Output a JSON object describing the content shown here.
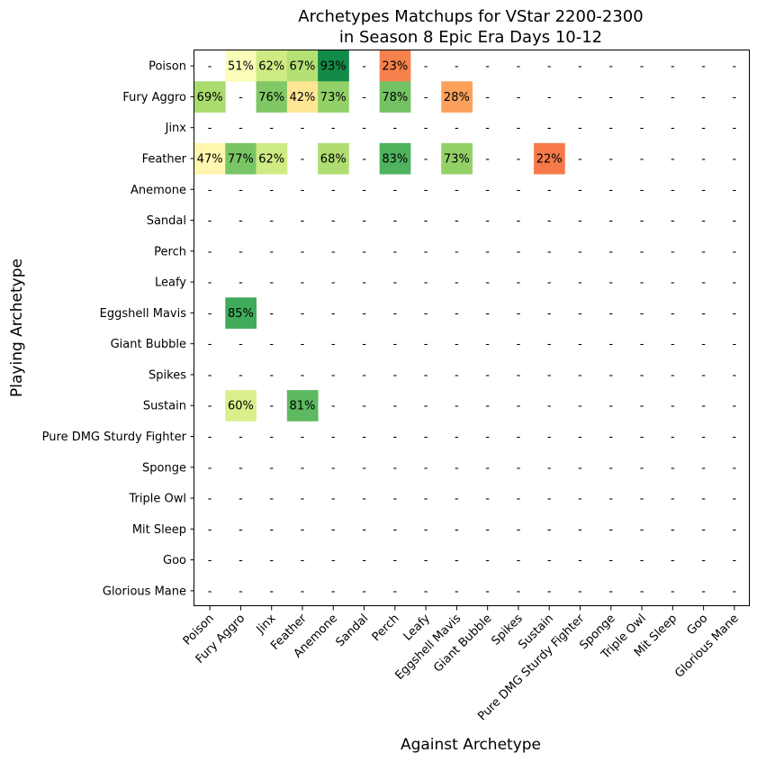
{
  "chart_data": {
    "type": "heatmap",
    "title_lines": [
      "Archetypes Matchups for VStar 2200-2300",
      "in Season 8 Epic Era Days 10-12"
    ],
    "xlabel": "Against Archetype",
    "ylabel": "Playing Archetype",
    "rows": [
      "Poison",
      "Fury Aggro",
      "Jinx",
      "Feather",
      "Anemone",
      "Sandal",
      "Perch",
      "Leafy",
      "Eggshell Mavis",
      "Giant Bubble",
      "Spikes",
      "Sustain",
      "Pure DMG Sturdy Fighter",
      "Sponge",
      "Triple Owl",
      "Mit Sleep",
      "Goo",
      "Glorious Mane"
    ],
    "columns": [
      "Poison",
      "Fury Aggro",
      "Jinx",
      "Feather",
      "Anemone",
      "Sandal",
      "Perch",
      "Leafy",
      "Eggshell Mavis",
      "Giant Bubble",
      "Spikes",
      "Sustain",
      "Pure DMG Sturdy Fighter",
      "Sponge",
      "Triple Owl",
      "Mit Sleep",
      "Goo",
      "Glorious Mane"
    ],
    "values": [
      [
        null,
        51,
        62,
        67,
        93,
        null,
        23,
        null,
        null,
        null,
        null,
        null,
        null,
        null,
        null,
        null,
        null,
        null
      ],
      [
        69,
        null,
        76,
        42,
        73,
        null,
        78,
        null,
        28,
        null,
        null,
        null,
        null,
        null,
        null,
        null,
        null,
        null
      ],
      [
        null,
        null,
        null,
        null,
        null,
        null,
        null,
        null,
        null,
        null,
        null,
        null,
        null,
        null,
        null,
        null,
        null,
        null
      ],
      [
        47,
        77,
        62,
        null,
        68,
        null,
        83,
        null,
        73,
        null,
        null,
        22,
        null,
        null,
        null,
        null,
        null,
        null
      ],
      [
        null,
        null,
        null,
        null,
        null,
        null,
        null,
        null,
        null,
        null,
        null,
        null,
        null,
        null,
        null,
        null,
        null,
        null
      ],
      [
        null,
        null,
        null,
        null,
        null,
        null,
        null,
        null,
        null,
        null,
        null,
        null,
        null,
        null,
        null,
        null,
        null,
        null
      ],
      [
        null,
        null,
        null,
        null,
        null,
        null,
        null,
        null,
        null,
        null,
        null,
        null,
        null,
        null,
        null,
        null,
        null,
        null
      ],
      [
        null,
        null,
        null,
        null,
        null,
        null,
        null,
        null,
        null,
        null,
        null,
        null,
        null,
        null,
        null,
        null,
        null,
        null
      ],
      [
        null,
        85,
        null,
        null,
        null,
        null,
        null,
        null,
        null,
        null,
        null,
        null,
        null,
        null,
        null,
        null,
        null,
        null
      ],
      [
        null,
        null,
        null,
        null,
        null,
        null,
        null,
        null,
        null,
        null,
        null,
        null,
        null,
        null,
        null,
        null,
        null,
        null
      ],
      [
        null,
        null,
        null,
        null,
        null,
        null,
        null,
        null,
        null,
        null,
        null,
        null,
        null,
        null,
        null,
        null,
        null,
        null
      ],
      [
        null,
        60,
        null,
        81,
        null,
        null,
        null,
        null,
        null,
        null,
        null,
        null,
        null,
        null,
        null,
        null,
        null,
        null
      ],
      [
        null,
        null,
        null,
        null,
        null,
        null,
        null,
        null,
        null,
        null,
        null,
        null,
        null,
        null,
        null,
        null,
        null,
        null
      ],
      [
        null,
        null,
        null,
        null,
        null,
        null,
        null,
        null,
        null,
        null,
        null,
        null,
        null,
        null,
        null,
        null,
        null,
        null
      ],
      [
        null,
        null,
        null,
        null,
        null,
        null,
        null,
        null,
        null,
        null,
        null,
        null,
        null,
        null,
        null,
        null,
        null,
        null
      ],
      [
        null,
        null,
        null,
        null,
        null,
        null,
        null,
        null,
        null,
        null,
        null,
        null,
        null,
        null,
        null,
        null,
        null,
        null
      ],
      [
        null,
        null,
        null,
        null,
        null,
        null,
        null,
        null,
        null,
        null,
        null,
        null,
        null,
        null,
        null,
        null,
        null,
        null
      ],
      [
        null,
        null,
        null,
        null,
        null,
        null,
        null,
        null,
        null,
        null,
        null,
        null,
        null,
        null,
        null,
        null,
        null,
        null
      ]
    ],
    "value_suffix": "%",
    "missing_text": "-",
    "colormap": "RdYlGn",
    "grid": false
  }
}
